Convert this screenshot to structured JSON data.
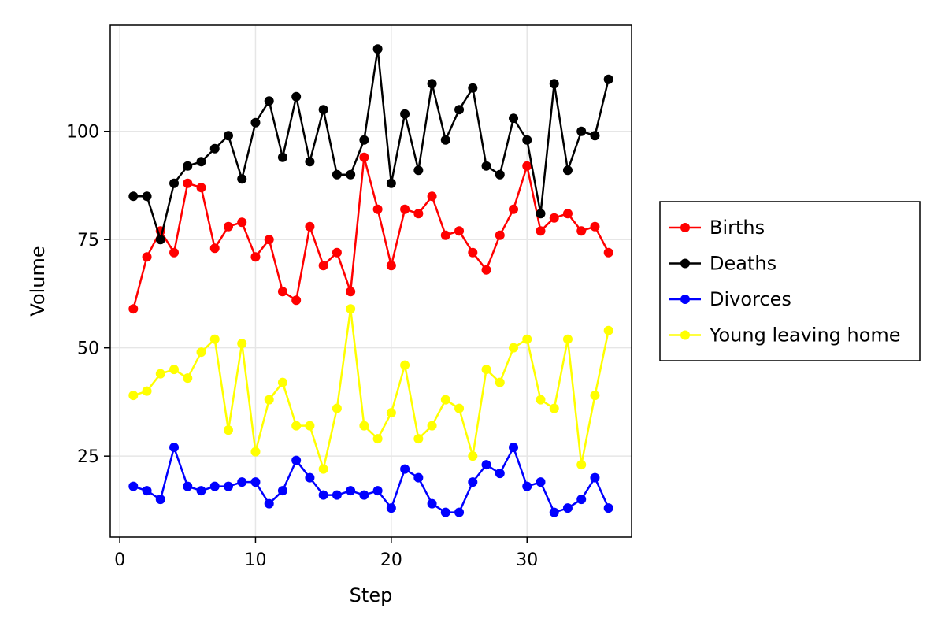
{
  "chart_data": {
    "type": "line",
    "title": "",
    "xlabel": "Step",
    "ylabel": "Volume",
    "xlim": [
      -0.7,
      37.7
    ],
    "ylim": [
      6.3,
      124.5
    ],
    "xticks": [
      0,
      10,
      20,
      30
    ],
    "yticks": [
      25,
      50,
      75,
      100
    ],
    "grid": true,
    "legend_position": "right",
    "x": [
      1,
      2,
      3,
      4,
      5,
      6,
      7,
      8,
      9,
      10,
      11,
      12,
      13,
      14,
      15,
      16,
      17,
      18,
      19,
      20,
      21,
      22,
      23,
      24,
      25,
      26,
      27,
      28,
      29,
      30,
      31,
      32,
      33,
      34,
      35,
      36
    ],
    "series": [
      {
        "name": "Births",
        "color": "#ff0000",
        "values": [
          59,
          71,
          77,
          72,
          88,
          87,
          73,
          78,
          79,
          71,
          75,
          63,
          61,
          78,
          69,
          72,
          63,
          94,
          82,
          69,
          82,
          81,
          85,
          76,
          77,
          72,
          68,
          76,
          82,
          92,
          77,
          80,
          81,
          77,
          78,
          72
        ]
      },
      {
        "name": "Deaths",
        "color": "#000000",
        "values": [
          85,
          85,
          75,
          88,
          92,
          93,
          96,
          99,
          89,
          102,
          107,
          94,
          108,
          93,
          105,
          90,
          90,
          98,
          119,
          88,
          104,
          91,
          111,
          98,
          105,
          110,
          92,
          90,
          103,
          98,
          81,
          111,
          91,
          100,
          99,
          112
        ]
      },
      {
        "name": "Divorces",
        "color": "#0000ff",
        "values": [
          18,
          17,
          15,
          27,
          18,
          17,
          18,
          18,
          19,
          19,
          14,
          17,
          24,
          20,
          16,
          16,
          17,
          16,
          17,
          13,
          22,
          20,
          14,
          12,
          12,
          19,
          23,
          21,
          27,
          18,
          19,
          12,
          13,
          15,
          20,
          13
        ]
      },
      {
        "name": "Young leaving home",
        "color": "#ffff00",
        "values": [
          39,
          40,
          44,
          45,
          43,
          49,
          52,
          31,
          51,
          26,
          38,
          42,
          32,
          32,
          22,
          36,
          59,
          32,
          29,
          35,
          46,
          29,
          32,
          38,
          36,
          25,
          45,
          42,
          50,
          52,
          38,
          36,
          52,
          23,
          39,
          54
        ]
      }
    ],
    "legend_order": [
      "Births",
      "Deaths",
      "Divorces",
      "Young leaving home"
    ]
  }
}
